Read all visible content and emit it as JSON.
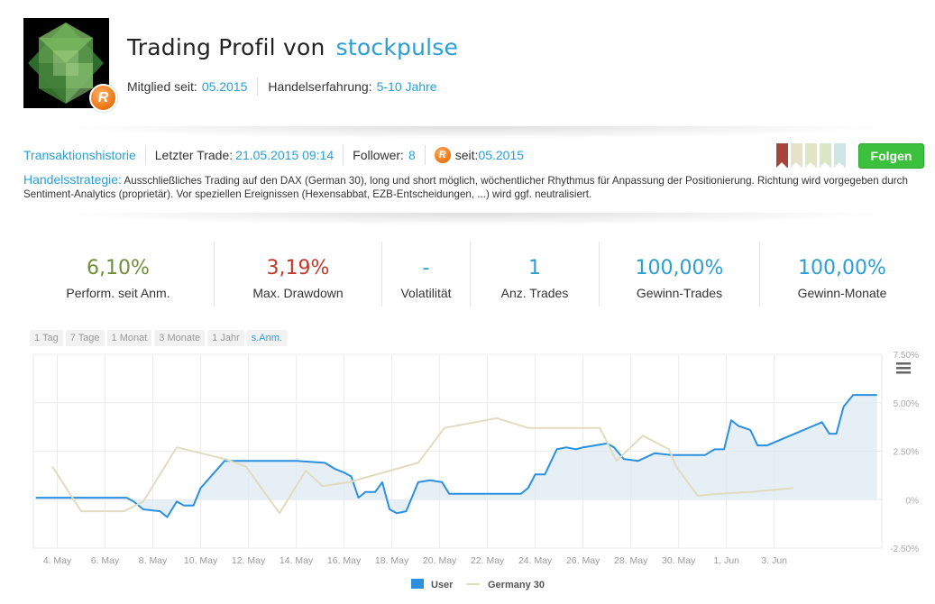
{
  "header": {
    "title_prefix": "Trading Profil von",
    "username": "stockpulse",
    "member_since_label": "Mitglied seit:",
    "member_since_value": "05.2015",
    "experience_label": "Handelserfahrung:",
    "experience_value": "5-10 Jahre",
    "badge_letter": "R"
  },
  "info": {
    "history_link": "Transaktionshistorie",
    "last_trade_label": "Letzter Trade:",
    "last_trade_value": "21.05.2015 09:14",
    "follower_label": "Follower:",
    "follower_value": "8",
    "since_label": "seit:",
    "since_value": "05.2015",
    "follow_button": "Folgen",
    "ribbon_colors": [
      "#a8453a",
      "#e6e1c9",
      "#e1e4c5",
      "#d8e8c7",
      "#cfe6e4"
    ]
  },
  "strategy": {
    "label": "Handelsstrategie:",
    "text": "Ausschließliches Trading auf den DAX (German 30), long und short möglich, wöchentlicher Rhythmus für Anpassung der Positionierung. Richtung wird vorgegeben durch Sentiment-Analytics (proprietär). Vor speziellen Ereignissen (Hexensabbat, EZB-Entscheidungen, ...) wird ggf. neutralisiert."
  },
  "stats": [
    {
      "value": "6,10%",
      "label": "Perform. seit Anm.",
      "color": "#6f8f3a"
    },
    {
      "value": "3,19%",
      "label": "Max. Drawdown",
      "color": "#c0392b"
    },
    {
      "value": "-",
      "label": "Volatilität",
      "color": "#2a9fd6"
    },
    {
      "value": "1",
      "label": "Anz. Trades",
      "color": "#2a9fd6"
    },
    {
      "value": "100,00%",
      "label": "Gewinn-Trades",
      "color": "#2a9fd6"
    },
    {
      "value": "100,00%",
      "label": "Gewinn-Monate",
      "color": "#2a9fd6"
    }
  ],
  "tabs": [
    "1 Tag",
    "7 Tage",
    "1 Monat",
    "3 Monate",
    "1 Jahr",
    "s.Anm."
  ],
  "active_tab": "s.Anm.",
  "chart_data": {
    "type": "line",
    "x_tick_labels": [
      "4. May",
      "6. May",
      "8. May",
      "10. May",
      "12. May",
      "14. May",
      "16. May",
      "18. May",
      "20. May",
      "22. May",
      "24. May",
      "26. May",
      "28. May",
      "30. May",
      "1. Jun",
      "3. Jun"
    ],
    "y_tick_labels": [
      "7.50%",
      "5.00%",
      "2.50%",
      "0%",
      "-2.50%"
    ],
    "ylim": [
      -2.5,
      7.5
    ],
    "grid": true,
    "legend_position": "bottom",
    "x_range": [
      3.0,
      38.5
    ],
    "series": [
      {
        "name": "User",
        "color": "#2b90e0",
        "area_color": "#dde9f3",
        "x": [
          3.1,
          6.9,
          7.2,
          7.6,
          8.3,
          8.6,
          9.0,
          9.3,
          9.7,
          10.0,
          11.0,
          11.5,
          12.2,
          14.0,
          15.2,
          15.6,
          16.0,
          16.3,
          16.6,
          16.9,
          17.3,
          17.6,
          17.9,
          18.2,
          18.6,
          19.1,
          19.6,
          20.1,
          20.4,
          22.0,
          22.3,
          22.7,
          23.1,
          23.4,
          23.7,
          24.0,
          24.4,
          24.9,
          25.3,
          25.7,
          26.0,
          26.5,
          27.0,
          27.3,
          27.7,
          28.3,
          29.0,
          29.7,
          30.1,
          30.4,
          30.8,
          31.1,
          31.5,
          31.9,
          32.2,
          32.5,
          33.0,
          33.3,
          33.7,
          36.0,
          36.3,
          36.6,
          36.9,
          37.3,
          37.6,
          38.3
        ],
        "y": [
          0.1,
          0.1,
          -0.1,
          -0.5,
          -0.6,
          -0.9,
          -0.1,
          -0.3,
          -0.3,
          0.6,
          2.0,
          2.0,
          2.0,
          2.0,
          1.9,
          1.6,
          1.4,
          1.2,
          0.1,
          0.4,
          0.4,
          0.9,
          -0.5,
          -0.7,
          -0.6,
          0.9,
          1.0,
          0.9,
          0.3,
          0.3,
          0.3,
          0.3,
          0.3,
          0.3,
          0.6,
          1.3,
          1.3,
          2.6,
          2.7,
          2.6,
          2.7,
          2.8,
          2.9,
          2.7,
          2.1,
          2.0,
          2.4,
          2.3,
          2.3,
          2.3,
          2.3,
          2.3,
          2.6,
          2.6,
          4.1,
          3.8,
          3.6,
          2.8,
          2.8,
          4.0,
          3.4,
          3.4,
          4.8,
          5.4,
          5.4,
          5.4
        ]
      },
      {
        "name": "Germany 30",
        "color": "#e0dcc0",
        "x": [
          3.8,
          5.0,
          6.8,
          7.6,
          9.0,
          11.0,
          11.9,
          13.3,
          14.4,
          15.1,
          16.2,
          19.1,
          20.2,
          22.4,
          23.7,
          25.3,
          26.7,
          27.4,
          28.5,
          29.6,
          29.9,
          30.8,
          31.7,
          33.0,
          34.8
        ],
        "y": [
          1.7,
          -0.6,
          -0.6,
          -0.1,
          2.7,
          2.1,
          1.7,
          -0.7,
          1.5,
          0.7,
          0.9,
          1.9,
          3.7,
          4.2,
          3.7,
          3.7,
          3.7,
          2.0,
          3.3,
          2.6,
          1.7,
          0.2,
          0.3,
          0.4,
          0.6
        ]
      }
    ]
  }
}
